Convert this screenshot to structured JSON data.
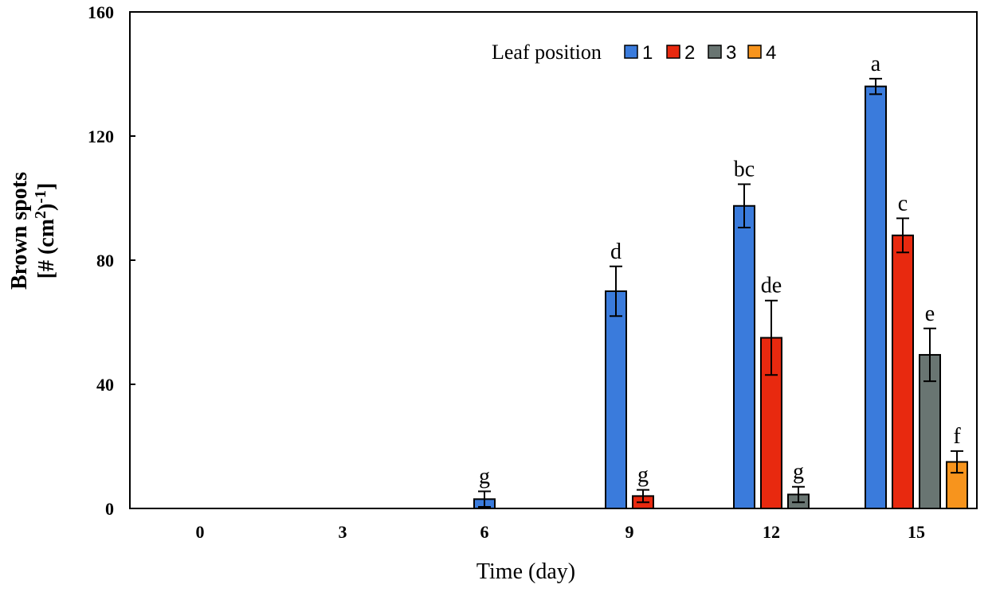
{
  "chart_data": {
    "type": "bar",
    "title": "",
    "xlabel": "Time (day)",
    "ylabel_line1": "Brown spots",
    "ylabel_line2_prefix": "[# (cm",
    "ylabel_sup1": "2",
    "ylabel_mid": ")",
    "ylabel_sup2": "-1",
    "ylabel_suffix": "]",
    "ylim": [
      0,
      160
    ],
    "yticks": [
      0,
      40,
      80,
      120,
      160
    ],
    "categories": [
      "0",
      "3",
      "6",
      "9",
      "12",
      "15"
    ],
    "legend_title": "Leaf position",
    "legend_position": "top-center",
    "series": [
      {
        "name": "1",
        "color": "#3a7bdc",
        "values": [
          null,
          null,
          3,
          70,
          97.5,
          136
        ],
        "errors": [
          null,
          null,
          2.5,
          8,
          7,
          2.5
        ],
        "labels": [
          null,
          null,
          "g",
          "d",
          "bc",
          "a"
        ]
      },
      {
        "name": "2",
        "color": "#e8290f",
        "values": [
          null,
          null,
          null,
          4,
          55,
          88
        ],
        "errors": [
          null,
          null,
          null,
          2,
          12,
          5.5
        ],
        "labels": [
          null,
          null,
          null,
          "g",
          "de",
          "c"
        ]
      },
      {
        "name": "3",
        "color": "#697572",
        "values": [
          null,
          null,
          null,
          null,
          4.5,
          49.5
        ],
        "errors": [
          null,
          null,
          null,
          null,
          2.5,
          8.5
        ],
        "labels": [
          null,
          null,
          null,
          null,
          "g",
          "e"
        ]
      },
      {
        "name": "4",
        "color": "#f7941d",
        "values": [
          null,
          null,
          null,
          null,
          null,
          15
        ],
        "errors": [
          null,
          null,
          null,
          null,
          null,
          3.5
        ],
        "labels": [
          null,
          null,
          null,
          null,
          null,
          "f"
        ]
      }
    ]
  }
}
